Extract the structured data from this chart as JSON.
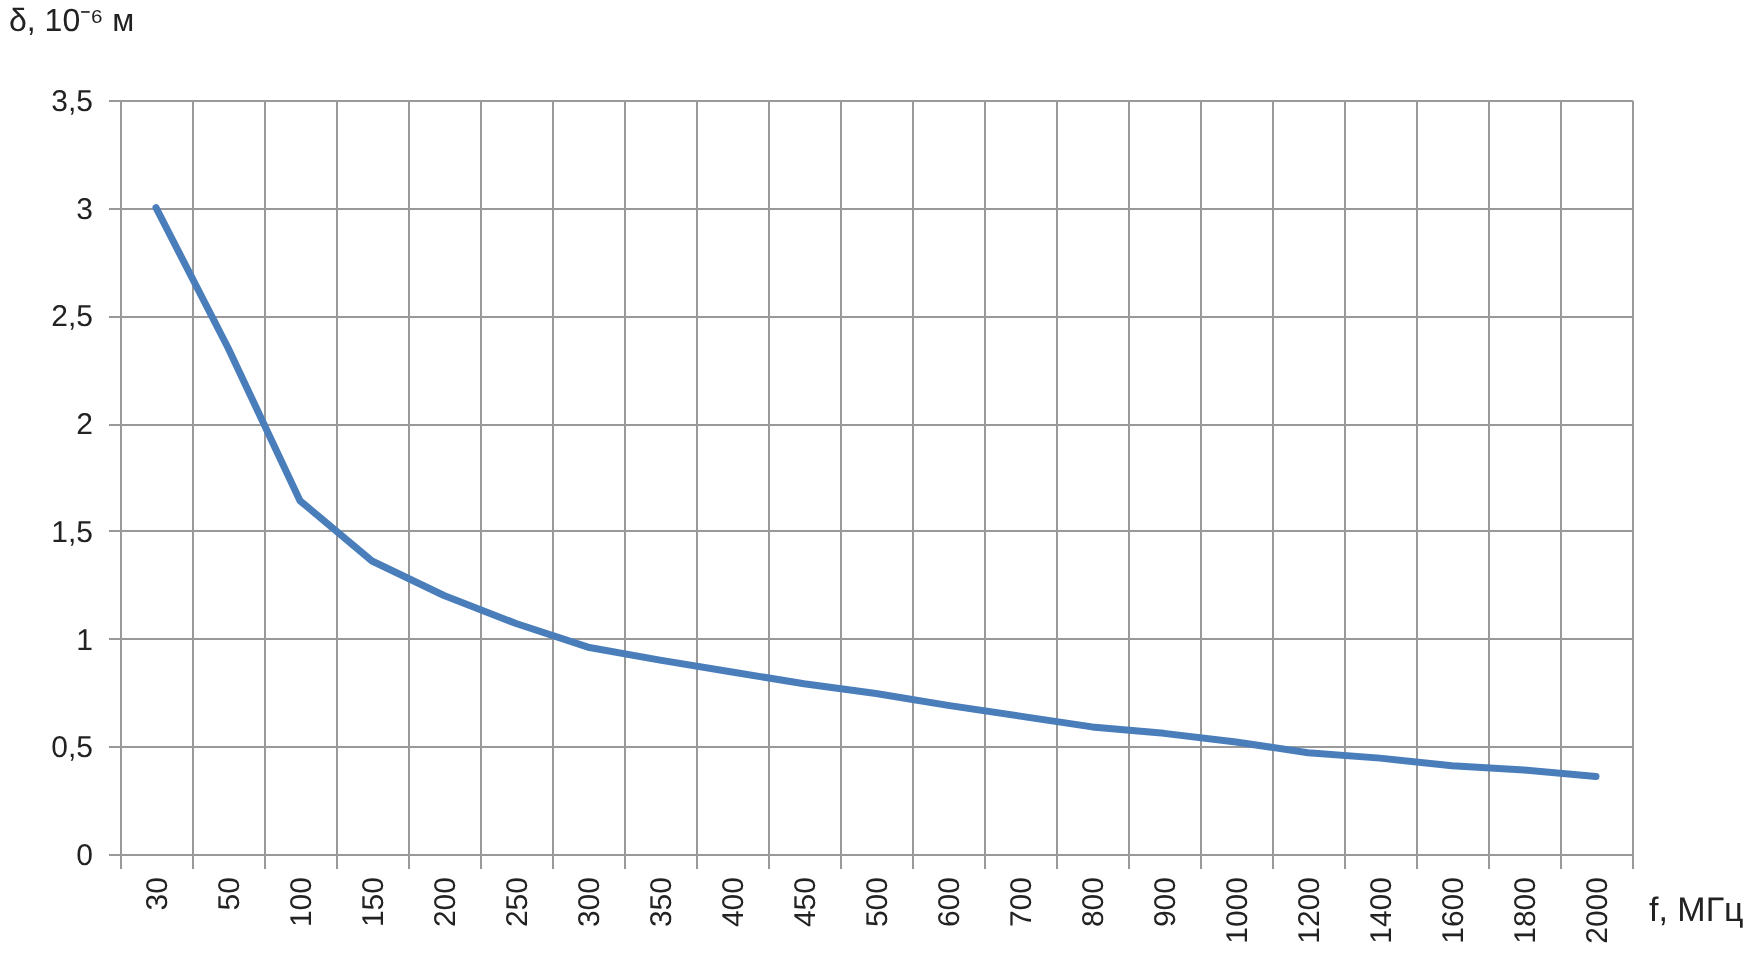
{
  "chart_data": {
    "type": "line",
    "xlabel": "f, МГц",
    "ylabel": "δ, 10⁻⁶ м",
    "categories": [
      "30",
      "50",
      "100",
      "150",
      "200",
      "250",
      "300",
      "350",
      "400",
      "450",
      "500",
      "600",
      "700",
      "800",
      "900",
      "1000",
      "1200",
      "1400",
      "1600",
      "1800",
      "2000"
    ],
    "series": [
      {
        "color": "#4a7ebb",
        "values": [
          3.0,
          2.35,
          1.64,
          1.36,
          1.2,
          1.07,
          0.96,
          0.9,
          0.845,
          0.79,
          0.745,
          0.69,
          0.64,
          0.59,
          0.56,
          0.52,
          0.47,
          0.445,
          0.41,
          0.39,
          0.36
        ]
      }
    ],
    "ylim": [
      0,
      3.5
    ],
    "yticks": [
      0,
      {
        "value": 0.5,
        "label": "0,5"
      },
      1,
      {
        "value": 1.5,
        "label": "1,5"
      },
      2,
      {
        "value": 2.5,
        "label": "2,5"
      },
      3,
      {
        "value": 3.5,
        "label": "3,5"
      }
    ],
    "grid": true,
    "legend": false,
    "marker": "none",
    "line_style": "solid"
  }
}
